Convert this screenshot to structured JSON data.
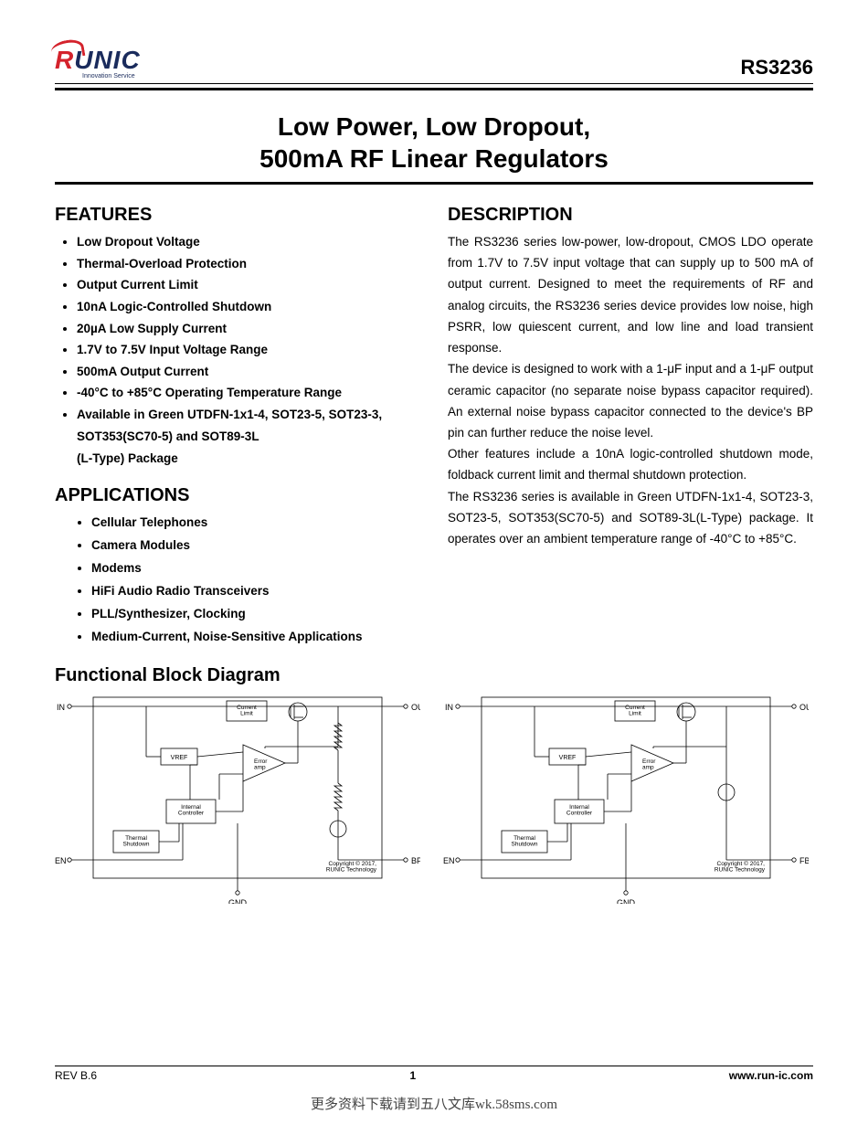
{
  "header": {
    "logo_text": "RUNIC",
    "logo_sub": "Innovation Service",
    "part_number": "RS3236"
  },
  "title": {
    "line1": "Low Power, Low Dropout,",
    "line2": "500mA RF Linear Regulators"
  },
  "features": {
    "heading": "FEATURES",
    "items": [
      "Low Dropout Voltage",
      "Thermal-Overload Protection",
      "Output Current Limit",
      "10nA Logic-Controlled Shutdown",
      "20µA Low Supply Current",
      "1.7V to 7.5V Input Voltage Range",
      "500mA Output Current",
      "-40°C to +85°C Operating Temperature Range"
    ],
    "last_item_main": "Available in Green UTDFN-1x1-4, SOT23-5, SOT23-3, SOT353(SC70-5) and SOT89-3L",
    "last_item_sub": "(L-Type) Package"
  },
  "applications": {
    "heading": "APPLICATIONS",
    "items": [
      "Cellular Telephones",
      "Camera Modules",
      "Modems",
      "HiFi Audio Radio Transceivers",
      "PLL/Synthesizer, Clocking",
      "Medium-Current, Noise-Sensitive Applications"
    ]
  },
  "description": {
    "heading": "DESCRIPTION",
    "p1": "The RS3236 series low-power, low-dropout, CMOS LDO operate from 1.7V to 7.5V input voltage that can supply up to 500 mA of output current. Designed to meet the requirements of RF and analog circuits, the RS3236 series device provides low noise, high PSRR, low quiescent current, and low line and load transient response.",
    "p2": "The device is designed to work with a 1-μF input and a 1-μF output ceramic capacitor (no separate noise bypass capacitor required). An external noise bypass capacitor connected to the device's BP pin can further reduce the noise level.",
    "p3": "Other features include a 10nA logic-controlled shutdown mode, foldback current limit and thermal shutdown protection.",
    "p4": "The RS3236 series is available in Green UTDFN-1x1-4, SOT23-3, SOT23-5, SOT353(SC70-5) and SOT89-3L(L-Type) package. It operates over an ambient temperature range of -40°C to +85°C."
  },
  "block_diagram": {
    "heading": "Functional Block Diagram",
    "pins_left": {
      "in": "IN",
      "en": "EN",
      "out": "OUT",
      "aux": "BP",
      "gnd": "GND"
    },
    "pins_right": {
      "in": "IN",
      "en": "EN",
      "out": "OUT",
      "aux": "FB",
      "gnd": "GND"
    },
    "blocks": {
      "current_limit": "Current\nLimit",
      "vref": "VREF",
      "error_amp": "Error\namp",
      "internal_ctrl": "Internal\nController",
      "thermal": "Thermal\nShutdown"
    },
    "copyright": "Copyright © 2017,\nRUNIC Technology",
    "stroke": "#000000",
    "font_size_pin": 9,
    "font_size_block": 7
  },
  "footer": {
    "rev": "REV B.6",
    "page": "1",
    "url": "www.run-ic.com"
  },
  "watermark": "更多资料下载请到五八文库wk.58sms.com"
}
